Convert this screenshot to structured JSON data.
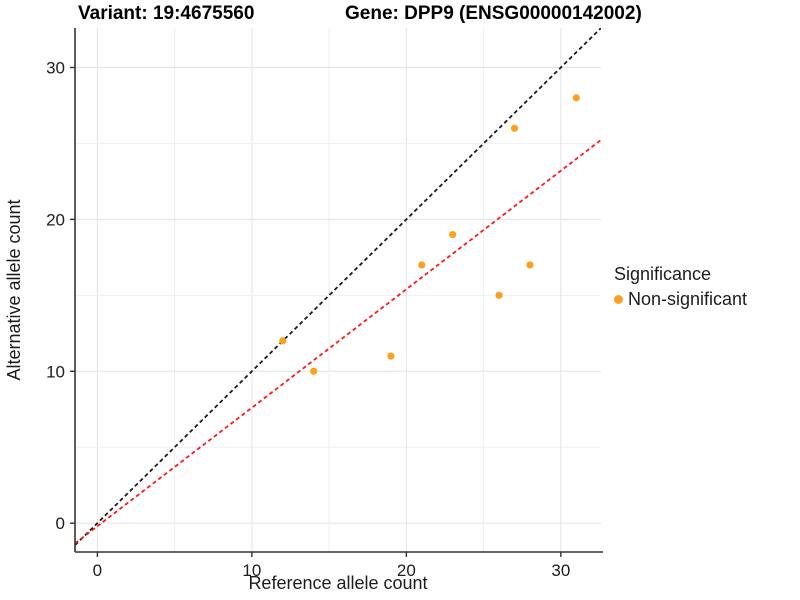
{
  "chart_data": {
    "type": "scatter",
    "title_variant": "Variant: 19:4675560",
    "title_gene": "Gene: DPP9 (ENSG00000142002)",
    "xlabel": "Reference allele count",
    "ylabel": "Alternative allele count",
    "xlim": [
      -1.45,
      32.6
    ],
    "ylim": [
      -1.9,
      32.6
    ],
    "x_ticks": [
      0,
      10,
      20,
      30
    ],
    "y_ticks": [
      0,
      10,
      20,
      30
    ],
    "grid_lines": [
      0,
      5,
      10,
      15,
      20,
      25,
      30
    ],
    "grid_on": true,
    "series": [
      {
        "name": "Non-significant",
        "color": "#FBA01F",
        "points": [
          [
            12,
            12
          ],
          [
            14,
            10
          ],
          [
            19,
            11
          ],
          [
            21,
            17
          ],
          [
            23,
            19
          ],
          [
            26,
            15
          ],
          [
            27,
            26
          ],
          [
            28,
            17
          ],
          [
            31,
            28
          ]
        ]
      }
    ],
    "lines": [
      {
        "name": "identity-line",
        "slope": 1.0,
        "intercept": 0.0,
        "color": "#1a1a1a",
        "style": "dashed"
      },
      {
        "name": "expected-ratio-line",
        "slope": 0.78,
        "intercept": -0.2,
        "color": "#ff1717",
        "style": "dashed"
      }
    ],
    "legend_position": "right"
  },
  "legend": {
    "title": "Significance",
    "items": [
      {
        "label": "Non-significant",
        "color": "#FBA01F"
      }
    ]
  },
  "colors": {
    "background": "#ffffff",
    "grid_major": "#e3e3e3",
    "grid_minor": "#efefef",
    "axis": "#333333",
    "text": "#1c1c1c",
    "point": "#FBA01F"
  }
}
